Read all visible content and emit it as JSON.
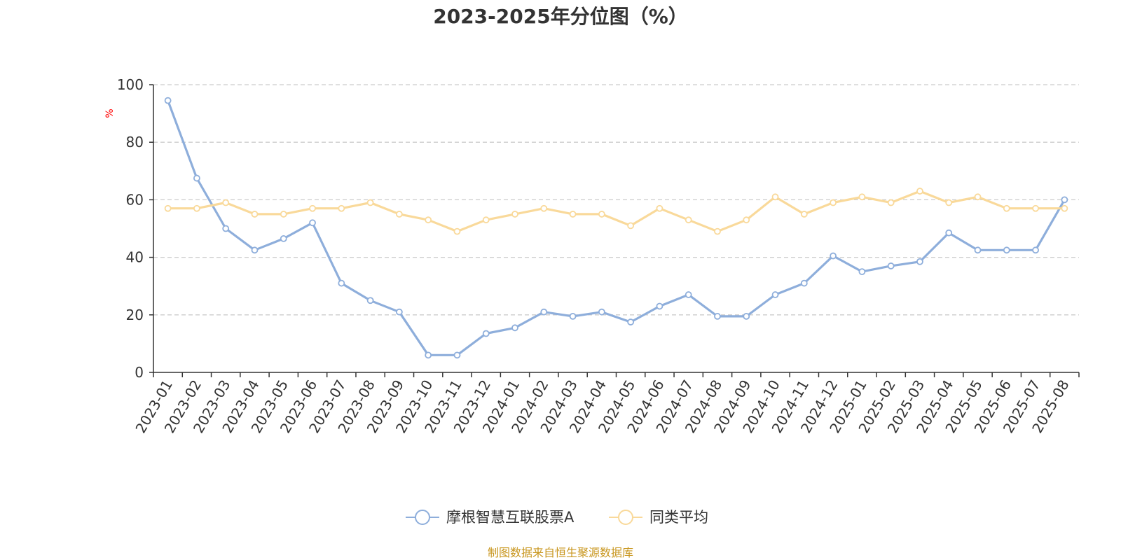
{
  "chart_data": {
    "type": "line",
    "title": "2023-2025年分位图（%）",
    "ylabel": "%",
    "ylim": [
      0,
      100
    ],
    "yticks": [
      0,
      20,
      40,
      60,
      80,
      100
    ],
    "grid": true,
    "legend_position": "bottom-center",
    "categories": [
      "2023-01",
      "2023-02",
      "2023-03",
      "2023-04",
      "2023-05",
      "2023-06",
      "2023-07",
      "2023-08",
      "2023-09",
      "2023-10",
      "2023-11",
      "2023-12",
      "2024-01",
      "2024-02",
      "2024-03",
      "2024-04",
      "2024-05",
      "2024-06",
      "2024-07",
      "2024-08",
      "2024-09",
      "2024-10",
      "2024-11",
      "2024-12",
      "2025-01",
      "2025-02",
      "2025-03",
      "2025-04",
      "2025-05",
      "2025-06",
      "2025-07",
      "2025-08"
    ],
    "series": [
      {
        "name": "摩根智慧互联股票A",
        "color": "#8eaedb",
        "values": [
          94.5,
          67.5,
          50,
          42.5,
          46.5,
          52,
          31,
          25,
          21,
          6,
          6,
          13.5,
          15.5,
          21,
          19.5,
          21,
          17.5,
          23,
          27,
          19.5,
          19.5,
          27,
          31,
          40.5,
          35,
          37,
          38.5,
          48.5,
          42.5,
          42.5,
          42.5,
          60
        ]
      },
      {
        "name": "同类平均",
        "color": "#f9d99a",
        "values": [
          57,
          57,
          59,
          55,
          55,
          57,
          57,
          59,
          55,
          53,
          49,
          53,
          55,
          57,
          55,
          55,
          51,
          57,
          53,
          49,
          53,
          61,
          55,
          59,
          61,
          59,
          63,
          59,
          61,
          57,
          57,
          57
        ]
      }
    ]
  },
  "source_text": "制图数据来自恒生聚源数据库",
  "colors": {
    "unit_label": "#ff0000",
    "source_text": "#c8961e",
    "grid": "#cccccc",
    "axis": "#333333"
  }
}
